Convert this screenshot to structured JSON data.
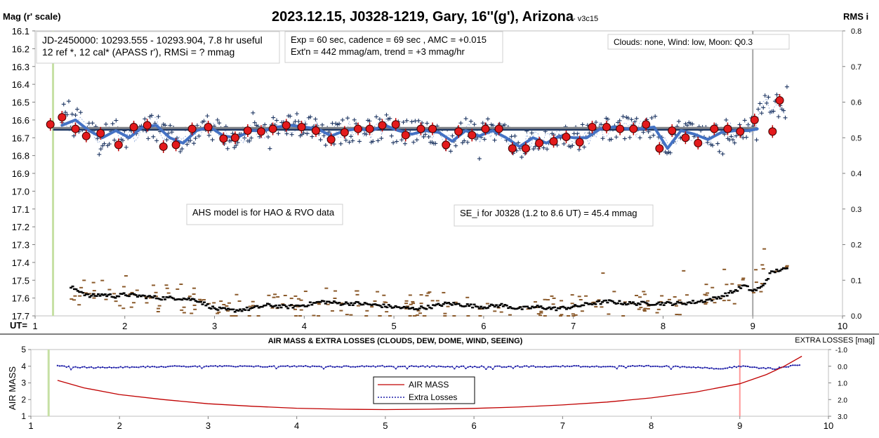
{
  "chart_data": [
    {
      "type": "scatter",
      "title": "2023.12.15, J0328-1219, Gary, 16''(g'), Arizona",
      "subtitle": "- v3c15",
      "ylabel": "Mag (r' scale)",
      "y2label": "RMS i",
      "x_axis_prefix": "UT=",
      "xlim": [
        1,
        10
      ],
      "ylim": [
        16.1,
        17.7
      ],
      "ylim_inverted": true,
      "y2lim": [
        0.0,
        0.8
      ],
      "x_ticks": [
        "1",
        "2",
        "3",
        "4",
        "5",
        "6",
        "7",
        "8",
        "9",
        "10"
      ],
      "y_ticks": [
        "16.1",
        "16.2",
        "16.3",
        "16.4",
        "16.5",
        "16.6",
        "16.7",
        "16.8",
        "16.9",
        "17.0",
        "17.1",
        "17.2",
        "17.3",
        "17.4",
        "17.5",
        "17.6",
        "17.7"
      ],
      "y2_ticks": [
        "0.8",
        "0.7",
        "0.6",
        "0.5",
        "0.4",
        "0.3",
        "0.2",
        "0.1",
        "0.0"
      ],
      "grid": false,
      "vertical_markers": [
        {
          "x": 1.2,
          "color": "#c6e0a4"
        },
        {
          "x": 9.0,
          "color": "#a6a6a6"
        }
      ],
      "annotations": [
        {
          "id": "jd",
          "lines": [
            "JD-2450000: 10293.555 - 10293.904, 7.8 hr useful",
            "12 ref *, 12 cal*  (APASS r'), RMSi = ? mmag"
          ]
        },
        {
          "id": "exp",
          "lines": [
            "Exp = 60 sec, cadence = 69 sec , AMC = +0.015",
            "Ext'n = 442 mmag/am, trend = +3 mmag/hr"
          ]
        },
        {
          "id": "clouds",
          "lines": [
            "Clouds: none,  Wind:  low,  Moon: Q0.3"
          ]
        },
        {
          "id": "ahs",
          "lines": [
            "AHS model is for HAO & RVO data"
          ]
        },
        {
          "id": "se",
          "lines": [
            "SE_i for J0328 (1.2 to 8.6 UT) = 45.4 mmag"
          ]
        }
      ],
      "series": [
        {
          "style": "dark-blue thick line",
          "color": "#1f3864",
          "x": [
            1.2,
            9.05
          ],
          "y": [
            16.65,
            16.65
          ]
        },
        {
          "style": "gray thick line",
          "color": "#8c8c8c",
          "x": [
            1.2,
            9.05
          ],
          "y": [
            16.645,
            16.645
          ]
        },
        {
          "style": "blue smoothed curve",
          "color": "#4472c4",
          "x": [
            1.3,
            1.45,
            1.6,
            1.75,
            1.9,
            2.05,
            2.2,
            2.35,
            2.5,
            2.65,
            2.8,
            2.95,
            3.1,
            3.25,
            3.4,
            3.55,
            3.7,
            3.85,
            4.0,
            4.15,
            4.3,
            4.45,
            4.6,
            4.75,
            4.9,
            5.05,
            5.2,
            5.35,
            5.5,
            5.65,
            5.8,
            5.95,
            6.1,
            6.25,
            6.4,
            6.55,
            6.7,
            6.85,
            7.0,
            7.15,
            7.3,
            7.45,
            7.6,
            7.75,
            7.9,
            8.05,
            8.2,
            8.35,
            8.5,
            8.65,
            8.8,
            8.95,
            9.05
          ],
          "y": [
            16.63,
            16.6,
            16.66,
            16.7,
            16.66,
            16.7,
            16.64,
            16.63,
            16.7,
            16.73,
            16.66,
            16.64,
            16.69,
            16.7,
            16.66,
            16.66,
            16.64,
            16.63,
            16.64,
            16.65,
            16.69,
            16.66,
            16.65,
            16.66,
            16.63,
            16.66,
            16.68,
            16.66,
            16.67,
            16.72,
            16.66,
            16.69,
            16.66,
            16.7,
            16.75,
            16.7,
            16.73,
            16.69,
            16.7,
            16.7,
            16.65,
            16.64,
            16.65,
            16.65,
            16.64,
            16.76,
            16.66,
            16.68,
            16.71,
            16.67,
            16.66,
            16.66,
            16.65
          ]
        },
        {
          "style": "red circles with error bars",
          "color": "#e31a1c",
          "x": [
            1.17,
            1.3,
            1.45,
            1.57,
            1.73,
            1.93,
            2.1,
            2.25,
            2.43,
            2.57,
            2.75,
            2.93,
            3.1,
            3.23,
            3.37,
            3.52,
            3.65,
            3.8,
            3.97,
            4.13,
            4.3,
            4.45,
            4.6,
            4.73,
            4.87,
            5.02,
            5.13,
            5.3,
            5.43,
            5.58,
            5.72,
            5.87,
            6.02,
            6.17,
            6.32,
            6.47,
            6.62,
            6.78,
            6.92,
            7.07,
            7.21,
            7.37,
            7.52,
            7.67,
            7.81,
            7.96,
            8.1,
            8.25,
            8.39,
            8.57,
            8.72,
            8.86,
            9.02,
            9.22,
            9.3
          ],
          "y": [
            16.625,
            16.585,
            16.65,
            16.69,
            16.675,
            16.74,
            16.64,
            16.63,
            16.75,
            16.74,
            16.65,
            16.64,
            16.705,
            16.7,
            16.66,
            16.665,
            16.65,
            16.63,
            16.64,
            16.66,
            16.71,
            16.67,
            16.65,
            16.65,
            16.63,
            16.625,
            16.685,
            16.65,
            16.65,
            16.74,
            16.665,
            16.685,
            16.65,
            16.65,
            16.76,
            16.76,
            16.73,
            16.72,
            16.695,
            16.725,
            16.64,
            16.64,
            16.65,
            16.65,
            16.625,
            16.76,
            16.66,
            16.7,
            16.73,
            16.65,
            16.65,
            16.665,
            16.6,
            16.665,
            16.49
          ]
        },
        {
          "style": "blue plus markers (individual observations)",
          "color": "#203864",
          "x_range": [
            1.3,
            9.4
          ],
          "y_range": [
            16.4,
            16.82
          ]
        },
        {
          "style": "black short dashes (RMS, right axis)",
          "color": "#000000",
          "x": [
            1.4,
            1.5,
            1.6,
            1.75,
            1.9,
            2.0,
            2.2,
            2.4,
            2.6,
            2.8,
            3.0,
            3.2,
            3.4,
            3.6,
            3.8,
            4.0,
            4.2,
            4.4,
            4.6,
            4.8,
            5.0,
            5.2,
            5.4,
            5.6,
            5.8,
            6.0,
            6.2,
            6.4,
            6.6,
            6.8,
            7.0,
            7.2,
            7.4,
            7.6,
            7.8,
            8.0,
            8.2,
            8.4,
            8.6,
            8.8,
            8.9,
            9.0,
            9.1,
            9.2,
            9.3,
            9.4
          ],
          "y": [
            0.08,
            0.07,
            0.055,
            0.06,
            0.055,
            0.06,
            0.055,
            0.05,
            0.05,
            0.045,
            0.02,
            0.015,
            0.02,
            0.03,
            0.025,
            0.03,
            0.04,
            0.035,
            0.035,
            0.03,
            0.025,
            0.02,
            0.025,
            0.035,
            0.03,
            0.025,
            0.03,
            0.02,
            0.025,
            0.02,
            0.025,
            0.035,
            0.04,
            0.035,
            0.035,
            0.035,
            0.035,
            0.04,
            0.05,
            0.07,
            0.085,
            0.07,
            0.08,
            0.12,
            0.13,
            0.13
          ]
        },
        {
          "style": "brown dashes (scatter, right axis)",
          "color": "#8b5a2b",
          "x_range": [
            1.4,
            9.4
          ],
          "y_range": [
            0.0,
            0.2
          ]
        }
      ]
    },
    {
      "type": "line",
      "title": "AIR MASS & EXTRA LOSSES (CLOUDS, DEW, DOME, WIND, SEEING)",
      "ylabel": "AIR MASS",
      "y2label": "EXTRA LOSSES [mag]",
      "xlim": [
        1,
        10
      ],
      "ylim": [
        1,
        5
      ],
      "y2lim": [
        3.0,
        -1.0
      ],
      "x_ticks": [
        "1",
        "2",
        "3",
        "4",
        "5",
        "6",
        "7",
        "8",
        "9",
        "10"
      ],
      "y_ticks": [
        "5",
        "4",
        "3",
        "2",
        "1"
      ],
      "y2_ticks": [
        "-1.0",
        "0.0",
        "1.0",
        "2.0",
        "3.0"
      ],
      "grid": false,
      "legend": {
        "placement": "center",
        "entries": [
          "AIR MASS",
          "Extra Losses"
        ]
      },
      "vertical_markers": [
        {
          "x": 1.2,
          "color": "#c6e0a4"
        },
        {
          "x": 9.0,
          "color": "#ff9999"
        }
      ],
      "series": [
        {
          "name": "AIR MASS",
          "color": "#c00000",
          "x": [
            1.3,
            1.6,
            2.0,
            2.5,
            3.0,
            3.5,
            4.0,
            4.5,
            5.0,
            5.5,
            6.0,
            6.5,
            7.0,
            7.5,
            8.0,
            8.5,
            9.0,
            9.3,
            9.5,
            9.7
          ],
          "y": [
            3.15,
            2.7,
            2.3,
            2.0,
            1.75,
            1.6,
            1.48,
            1.42,
            1.4,
            1.42,
            1.47,
            1.55,
            1.68,
            1.85,
            2.1,
            2.45,
            2.95,
            3.5,
            4.0,
            4.6
          ]
        },
        {
          "name": "Extra Losses",
          "color": "#1f1fa8",
          "x": [
            1.3,
            1.5,
            1.75,
            2.0,
            2.5,
            3.0,
            3.5,
            4.0,
            4.5,
            5.0,
            5.5,
            6.0,
            6.5,
            7.0,
            7.5,
            8.0,
            8.5,
            8.8,
            9.0,
            9.2,
            9.4,
            9.6,
            9.7
          ],
          "y": [
            0.0,
            0.05,
            0.08,
            0.05,
            0.02,
            0.0,
            0.02,
            0.0,
            0.02,
            0.0,
            0.02,
            0.03,
            0.02,
            0.0,
            0.02,
            0.0,
            0.05,
            0.15,
            0.0,
            0.1,
            0.15,
            -0.05,
            -0.1
          ]
        }
      ]
    }
  ]
}
